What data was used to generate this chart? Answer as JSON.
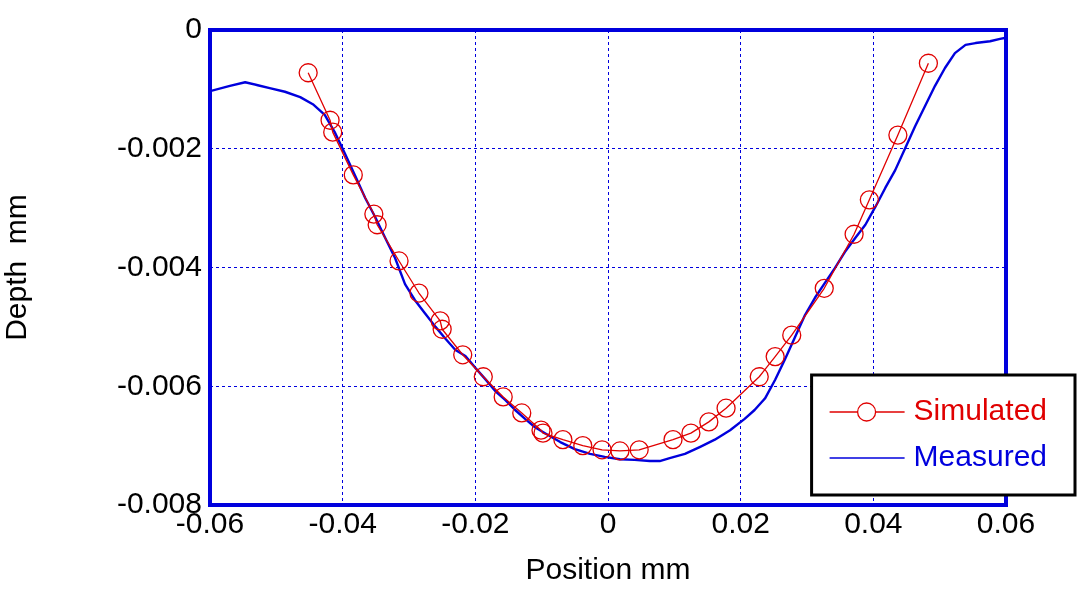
{
  "chart_data": {
    "type": "line",
    "xlabel": "Position mm",
    "ylabel": "Depth  mm",
    "xlim": [
      -0.06,
      0.06
    ],
    "ylim": [
      -0.008,
      0
    ],
    "xticks": [
      -0.06,
      -0.04,
      -0.02,
      0,
      0.02,
      0.04,
      0.06
    ],
    "yticks": [
      -0.008,
      -0.006,
      -0.004,
      -0.002,
      0
    ],
    "grid": true,
    "legend": "bottom right",
    "series": [
      {
        "name": "Simulated",
        "color": "#e00000",
        "marker": "circle",
        "x": [
          -0.0452,
          -0.0419,
          -0.0415,
          -0.0384,
          -0.0353,
          -0.0348,
          -0.0315,
          -0.0285,
          -0.0253,
          -0.025,
          -0.0219,
          -0.0188,
          -0.0158,
          -0.013,
          -0.0101,
          -0.0098,
          -0.0068,
          -0.0038,
          -0.0009,
          0.0018,
          0.0047,
          0.0098,
          0.0125,
          0.0152,
          0.0178,
          0.0228,
          0.0252,
          0.0277,
          0.0326,
          0.0371,
          0.0394,
          0.0437,
          0.0483
        ],
        "values": [
          -0.00072,
          -0.00152,
          -0.00172,
          -0.00244,
          -0.0031,
          -0.00328,
          -0.00389,
          -0.00443,
          -0.0049,
          -0.00504,
          -0.00547,
          -0.00584,
          -0.00618,
          -0.00645,
          -0.00674,
          -0.00679,
          -0.0069,
          -0.007,
          -0.00707,
          -0.00709,
          -0.00707,
          -0.0069,
          -0.00679,
          -0.0066,
          -0.00637,
          -0.00584,
          -0.0055,
          -0.00514,
          -0.00435,
          -0.00344,
          -0.00286,
          -0.00177,
          -0.00056
        ]
      },
      {
        "name": "Measured",
        "color": "#0000dd",
        "marker": "none",
        "x": [
          -0.06,
          -0.057,
          -0.0547,
          -0.0528,
          -0.051,
          -0.0487,
          -0.0464,
          -0.0445,
          -0.0427,
          -0.0412,
          -0.0397,
          -0.0381,
          -0.0366,
          -0.0351,
          -0.0336,
          -0.0321,
          -0.0306,
          -0.0291,
          -0.0276,
          -0.026,
          -0.0245,
          -0.023,
          -0.0215,
          -0.02,
          -0.0185,
          -0.017,
          -0.0155,
          -0.014,
          -0.0125,
          -0.011,
          -0.0095,
          -0.0072,
          -0.005,
          -0.0027,
          -0.0005,
          0.0018,
          0.004,
          0.0063,
          0.0078,
          0.0093,
          0.0116,
          0.0139,
          0.0161,
          0.0184,
          0.0206,
          0.0221,
          0.0237,
          0.0252,
          0.0267,
          0.0282,
          0.0297,
          0.0312,
          0.0327,
          0.0342,
          0.0357,
          0.0373,
          0.0388,
          0.0403,
          0.0418,
          0.0433,
          0.0448,
          0.0463,
          0.0478,
          0.0493,
          0.0508,
          0.0523,
          0.0539,
          0.0554,
          0.0576,
          0.0591,
          0.06
        ],
        "values": [
          -0.00103,
          -0.00094,
          -0.00088,
          -0.00093,
          -0.00098,
          -0.00104,
          -0.00113,
          -0.00125,
          -0.00143,
          -0.00172,
          -0.00207,
          -0.00246,
          -0.00283,
          -0.00315,
          -0.0035,
          -0.00384,
          -0.00428,
          -0.00455,
          -0.00477,
          -0.005,
          -0.0052,
          -0.00539,
          -0.00549,
          -0.00569,
          -0.00588,
          -0.00608,
          -0.00623,
          -0.0064,
          -0.00655,
          -0.00669,
          -0.00679,
          -0.00694,
          -0.00706,
          -0.00714,
          -0.00719,
          -0.00723,
          -0.00724,
          -0.00726,
          -0.00726,
          -0.00721,
          -0.00714,
          -0.00702,
          -0.0069,
          -0.00674,
          -0.00655,
          -0.0064,
          -0.0062,
          -0.00589,
          -0.00554,
          -0.00517,
          -0.0048,
          -0.00451,
          -0.00426,
          -0.00401,
          -0.00374,
          -0.0035,
          -0.00328,
          -0.00298,
          -0.00266,
          -0.00236,
          -0.00199,
          -0.00162,
          -0.00128,
          -0.00094,
          -0.00064,
          -0.00039,
          -0.00025,
          -0.00022,
          -0.00019,
          -0.00015,
          -0.00013
        ]
      }
    ]
  }
}
